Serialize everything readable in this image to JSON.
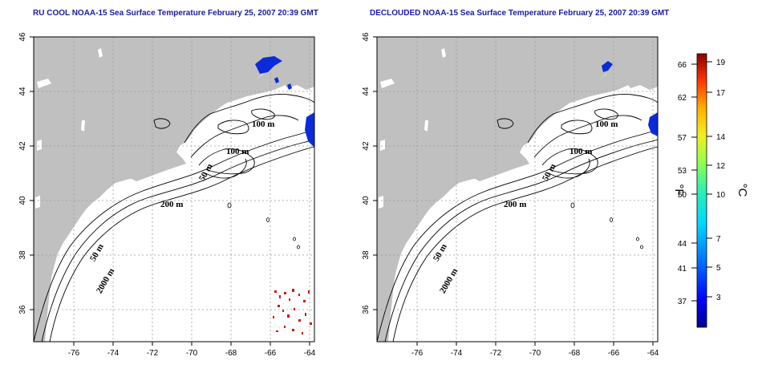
{
  "panels": [
    {
      "title": "RU COOL NOAA-15 Sea Surface Temperature February 25, 2007 20:39 GMT",
      "contour_labels": [
        "100 m",
        "100 m",
        "50 m",
        "200 m",
        "50 m",
        "2000 m"
      ]
    },
    {
      "title": "DECLOUDED NOAA-15 Sea Surface Temperature February 25, 2007 20:39 GMT",
      "contour_labels": [
        "100 m",
        "100 m",
        "50 m",
        "200 m",
        "50 m",
        "2000 m"
      ]
    }
  ],
  "axes": {
    "x_ticks": [
      "-76",
      "-74",
      "-72",
      "-70",
      "-68",
      "-66",
      "-64"
    ],
    "y_ticks": [
      "46",
      "44",
      "42",
      "40",
      "38",
      "36"
    ]
  },
  "colorbar": {
    "f_ticks": [
      "66",
      "62",
      "57",
      "53",
      "50",
      "44",
      "41",
      "37"
    ],
    "c_ticks": [
      "19",
      "17",
      "14",
      "12",
      "10",
      "7",
      "5",
      "3"
    ],
    "f_unit": "°F",
    "c_unit": "°C"
  },
  "colors": {
    "title": "#1a1aa8",
    "land": "#c0c0c0",
    "cold_water": "#0b2bd8",
    "warm_pixels": "#cc1a00"
  }
}
